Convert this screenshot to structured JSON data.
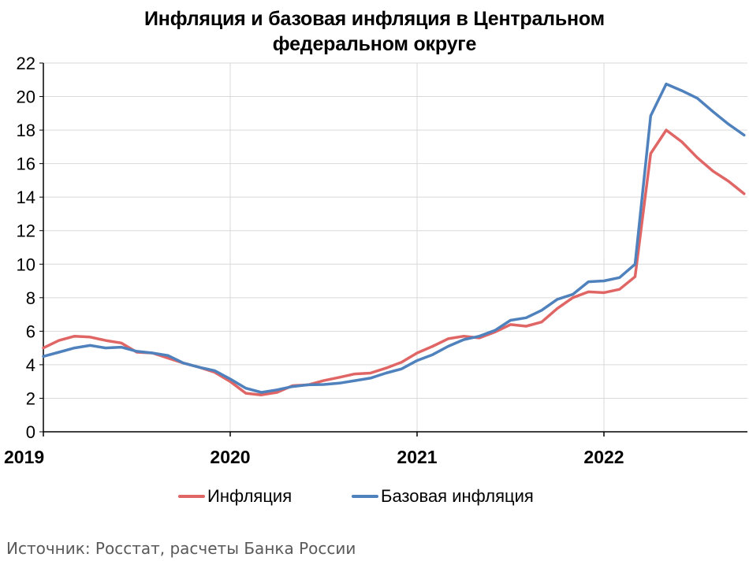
{
  "chart_data": {
    "type": "line",
    "title_lines": [
      "Инфляция и базовая инфляция в Центральном",
      "федеральном округе"
    ],
    "y_ticks": [
      "0",
      "2",
      "4",
      "6",
      "8",
      "10",
      "12",
      "14",
      "16",
      "18",
      "20",
      "22"
    ],
    "ylim": [
      0,
      22
    ],
    "x_ticks": [
      "2019",
      "2020",
      "2021",
      "2022"
    ],
    "x_start": "2019-01",
    "grid": true,
    "legend_position": "bottom",
    "series": [
      {
        "name": "Инфляция",
        "color": "#e06666",
        "values": [
          5.0,
          5.45,
          5.7,
          5.65,
          5.45,
          5.3,
          4.75,
          4.7,
          4.4,
          4.1,
          3.85,
          3.55,
          3.0,
          2.3,
          2.2,
          2.35,
          2.75,
          2.8,
          3.05,
          3.25,
          3.45,
          3.5,
          3.8,
          4.15,
          4.7,
          5.1,
          5.55,
          5.7,
          5.6,
          5.95,
          6.4,
          6.3,
          6.55,
          7.35,
          8.0,
          8.35,
          8.3,
          8.5,
          9.25,
          16.6,
          18.0,
          17.3,
          16.35,
          15.55,
          14.95,
          14.2
        ]
      },
      {
        "name": "Базовая инфляция",
        "color": "#4f81bd",
        "values": [
          4.5,
          4.75,
          5.0,
          5.15,
          5.0,
          5.05,
          4.8,
          4.7,
          4.55,
          4.1,
          3.85,
          3.65,
          3.15,
          2.6,
          2.35,
          2.5,
          2.7,
          2.8,
          2.82,
          2.9,
          3.05,
          3.2,
          3.5,
          3.75,
          4.25,
          4.6,
          5.1,
          5.5,
          5.7,
          6.05,
          6.65,
          6.8,
          7.25,
          7.9,
          8.2,
          8.95,
          9.0,
          9.2,
          10.0,
          18.85,
          20.75,
          20.35,
          19.9,
          19.1,
          18.35,
          17.7
        ]
      }
    ]
  },
  "source_note": "Источник: Росстат, расчеты Банка России"
}
